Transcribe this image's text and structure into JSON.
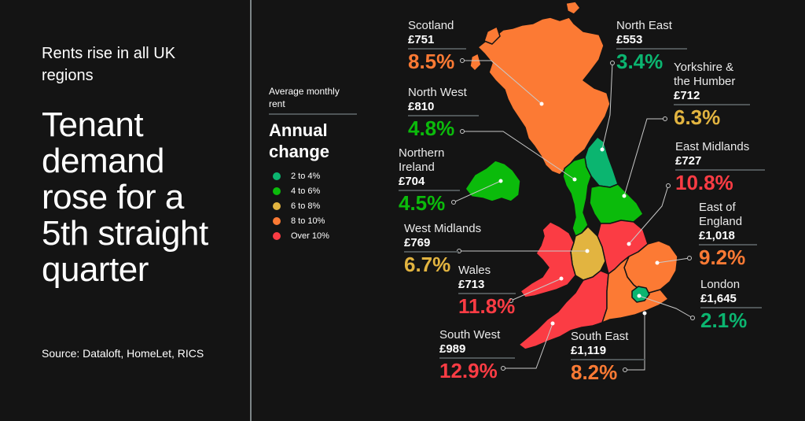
{
  "subtitle": "Rents rise in all UK regions",
  "headline": "Tenant demand rose for a 5th straight quarter",
  "source": "Source: Dataloft, HomeLet, RICS",
  "colors": {
    "c2to4": "#0bb570",
    "c4to6": "#0bbb0b",
    "c6to8": "#e2b440",
    "c8to10": "#fc7a34",
    "over10": "#fb3c44"
  },
  "chart_data": {
    "type": "map",
    "title": "Rents rise in all UK regions",
    "legend": {
      "subtitle": "Average monthly rent",
      "title": "Annual change",
      "bins": [
        {
          "label": "2 to 4%",
          "color": "#0bb570"
        },
        {
          "label": "4 to 6%",
          "color": "#0bbb0b"
        },
        {
          "label": "6 to 8%",
          "color": "#e2b440"
        },
        {
          "label": "8 to 10%",
          "color": "#fc7a34"
        },
        {
          "label": "Over 10%",
          "color": "#fb3c44"
        }
      ]
    },
    "regions": [
      {
        "name": "Scotland",
        "rent": "£751",
        "change": "8.5%",
        "change_value": 8.5,
        "bin": 3
      },
      {
        "name": "North West",
        "rent": "£810",
        "change": "4.8%",
        "change_value": 4.8,
        "bin": 1
      },
      {
        "name": "Northern Ireland",
        "rent": "£704",
        "change": "4.5%",
        "change_value": 4.5,
        "bin": 1
      },
      {
        "name": "West Midlands",
        "rent": "£769",
        "change": "6.7%",
        "change_value": 6.7,
        "bin": 2
      },
      {
        "name": "Wales",
        "rent": "£713",
        "change": "11.8%",
        "change_value": 11.8,
        "bin": 4
      },
      {
        "name": "South West",
        "rent": "£989",
        "change": "12.9%",
        "change_value": 12.9,
        "bin": 4
      },
      {
        "name": "North East",
        "rent": "£553",
        "change": "3.4%",
        "change_value": 3.4,
        "bin": 0
      },
      {
        "name": "Yorkshire & the Humber",
        "rent": "£712",
        "change": "6.3%",
        "change_value": 6.3,
        "bin": 2
      },
      {
        "name": "East Midlands",
        "rent": "£727",
        "change": "10.8%",
        "change_value": 10.8,
        "bin": 4
      },
      {
        "name": "East of England",
        "rent": "£1,018",
        "change": "9.2%",
        "change_value": 9.2,
        "bin": 3
      },
      {
        "name": "London",
        "rent": "£1,645",
        "change": "2.1%",
        "change_value": 2.1,
        "bin": 0
      },
      {
        "name": "South East",
        "rent": "£1,119",
        "change": "8.2%",
        "change_value": 8.2,
        "bin": 3
      }
    ]
  }
}
